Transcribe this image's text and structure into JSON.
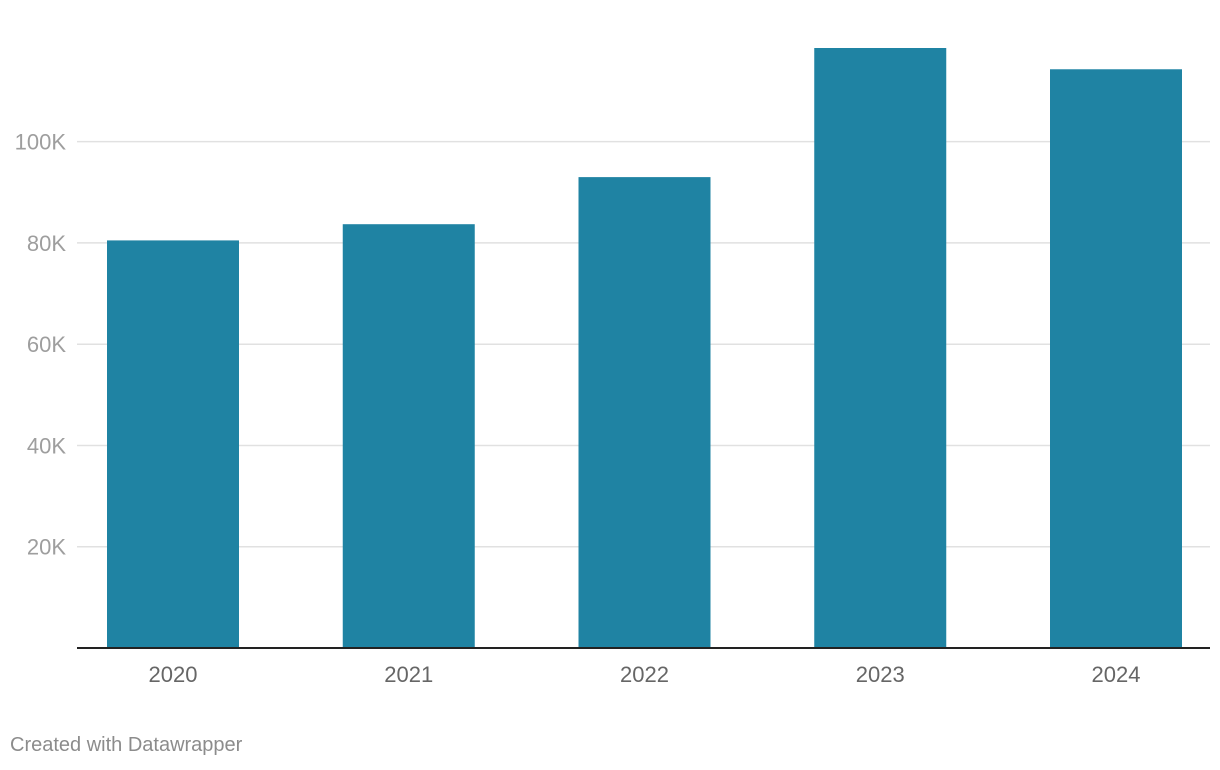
{
  "credit": "Created with Datawrapper",
  "colors": {
    "bar": "#1f83a3",
    "grid": "#e1e1e1",
    "axis_line": "#222222",
    "y_tick_text": "#9e9e9e",
    "x_tick_text": "#666666"
  },
  "chart_data": {
    "type": "bar",
    "title": "",
    "xlabel": "",
    "ylabel": "",
    "categories": [
      "2020",
      "2021",
      "2022",
      "2023",
      "2024"
    ],
    "values": [
      80500,
      83700,
      93000,
      118500,
      114300
    ],
    "ylim": [
      0,
      118500
    ],
    "y_ticks": [
      {
        "value": 20000,
        "label": "20K"
      },
      {
        "value": 40000,
        "label": "40K"
      },
      {
        "value": 60000,
        "label": "60K"
      },
      {
        "value": 80000,
        "label": "80K"
      },
      {
        "value": 100000,
        "label": "100K"
      }
    ],
    "grid": true,
    "legend": "none"
  }
}
